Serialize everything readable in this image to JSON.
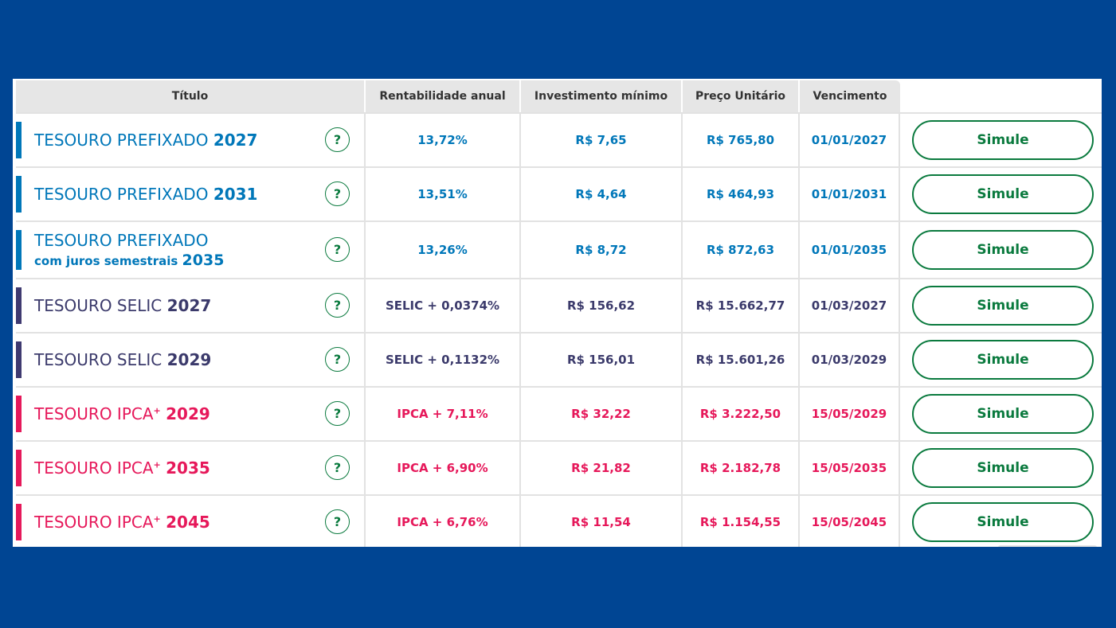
{
  "table": {
    "headers": {
      "titulo": "Título",
      "rentabilidade": "Rentabilidade anual",
      "investimento": "Investimento mínimo",
      "preco": "Preço Unitário",
      "vencimento": "Vencimento"
    },
    "help_glyph": "?",
    "button_label": "Simule",
    "rows": [
      {
        "name": "TESOURO PREFIXADO",
        "year": "2027",
        "rent": "13,72%",
        "inv": "R$ 7,65",
        "price": "R$ 765,80",
        "venc": "01/01/2027",
        "kind": "prefixado"
      },
      {
        "name": "TESOURO PREFIXADO",
        "year": "2031",
        "rent": "13,51%",
        "inv": "R$ 4,64",
        "price": "R$ 464,93",
        "venc": "01/01/2031",
        "kind": "prefixado"
      },
      {
        "name": "TESOURO PREFIXADO",
        "sub": "com juros semestrais",
        "year": "2035",
        "rent": "13,26%",
        "inv": "R$ 8,72",
        "price": "R$ 872,63",
        "venc": "01/01/2035",
        "kind": "prefixado"
      },
      {
        "name": "TESOURO SELIC",
        "year": "2027",
        "rent": "SELIC + 0,0374%",
        "inv": "R$ 156,62",
        "price": "R$ 15.662,77",
        "venc": "01/03/2027",
        "kind": "selic"
      },
      {
        "name": "TESOURO SELIC",
        "year": "2029",
        "rent": "SELIC + 0,1132%",
        "inv": "R$ 156,01",
        "price": "R$ 15.601,26",
        "venc": "01/03/2029",
        "kind": "selic"
      },
      {
        "name": "TESOURO IPCA",
        "sup": "+",
        "year": "2029",
        "rent": "IPCA + 7,11%",
        "inv": "R$ 32,22",
        "price": "R$ 3.222,50",
        "venc": "15/05/2029",
        "kind": "ipca"
      },
      {
        "name": "TESOURO IPCA",
        "sup": "+",
        "year": "2035",
        "rent": "IPCA + 6,90%",
        "inv": "R$ 21,82",
        "price": "R$ 2.182,78",
        "venc": "15/05/2035",
        "kind": "ipca"
      },
      {
        "name": "TESOURO IPCA",
        "sup": "+",
        "year": "2045",
        "rent": "IPCA + 6,76%",
        "inv": "R$ 11,54",
        "price": "R$ 1.154,55",
        "venc": "15/05/2045",
        "kind": "ipca"
      }
    ]
  },
  "colors": {
    "background": "#004593",
    "prefixado": "#0077b9",
    "selic": "#3b3a6b",
    "ipca": "#e6185a",
    "action_green": "#0a7a3e",
    "header_bg": "#e6e6e6"
  }
}
